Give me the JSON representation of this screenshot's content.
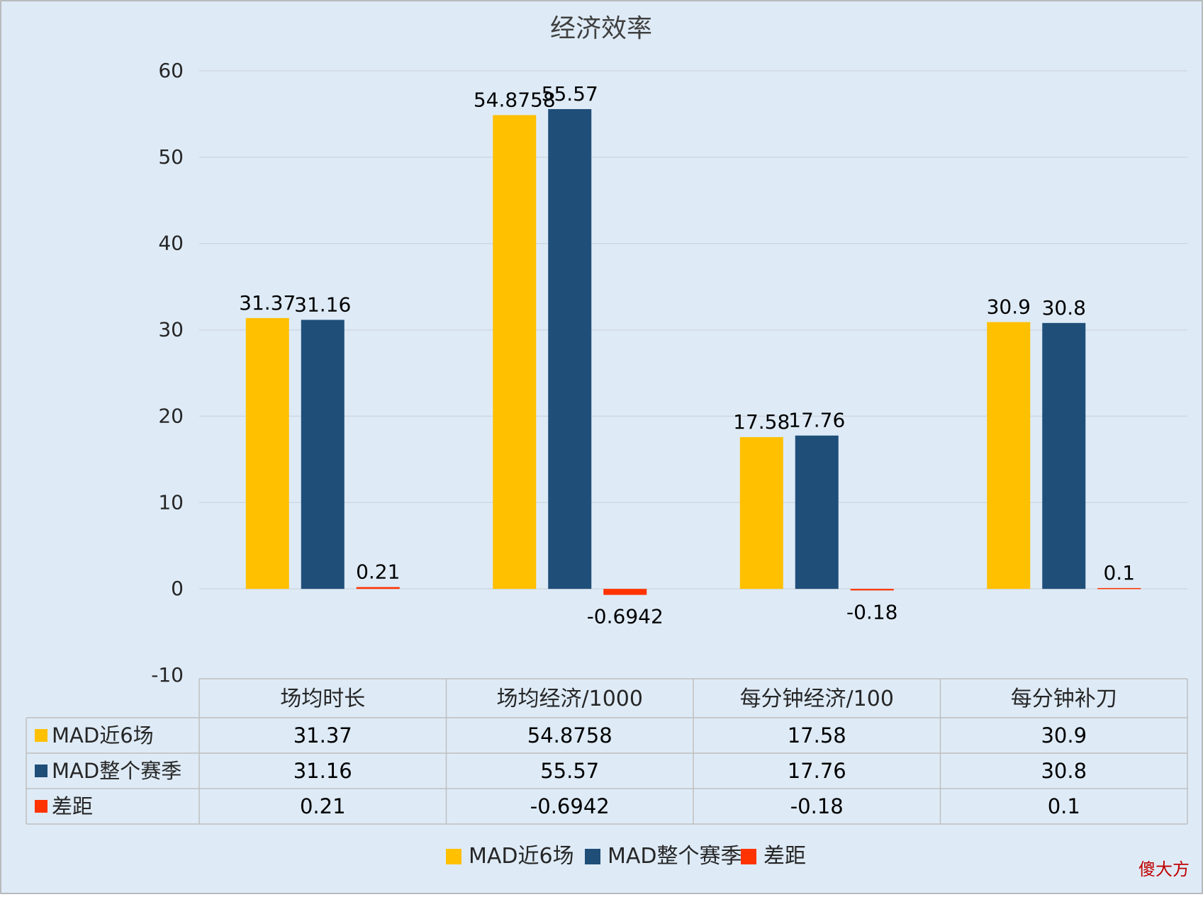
{
  "chart_data": {
    "type": "bar",
    "title": "经济效率",
    "categories": [
      "场均时长",
      "场均经济/1000",
      "每分钟经济/100",
      "每分钟补刀"
    ],
    "series": [
      {
        "name": "MAD近6场",
        "values": [
          31.37,
          54.8758,
          17.58,
          30.9
        ],
        "color": "#FFC000"
      },
      {
        "name": "MAD整个赛季",
        "values": [
          31.16,
          55.57,
          17.76,
          30.8
        ],
        "color": "#1F4E79"
      },
      {
        "name": "差距",
        "values": [
          0.21,
          -0.6942,
          -0.18,
          0.1
        ],
        "color": "#FF3300"
      }
    ],
    "ylim": [
      -10,
      60
    ],
    "yticks": [
      -10,
      0,
      10,
      20,
      30,
      40,
      50,
      60
    ],
    "grid": true,
    "legend_position": "bottom",
    "data_table": true,
    "data_labels": true,
    "background_color": "#DEEBF7"
  },
  "watermark": "傻大方"
}
